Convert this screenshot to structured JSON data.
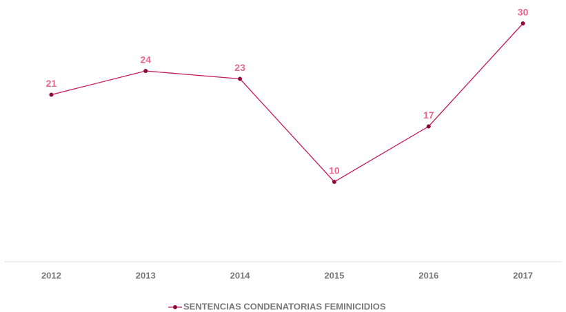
{
  "chart_data": {
    "type": "line",
    "categories": [
      "2012",
      "2013",
      "2014",
      "2015",
      "2016",
      "2017"
    ],
    "series": [
      {
        "name": "SENTENCIAS CONDENATORIAS FEMINICIDIOS",
        "color": "#c2185b",
        "values": [
          21,
          24,
          23,
          10,
          17,
          30
        ]
      }
    ],
    "ylim": [
      0,
      30
    ],
    "legend": "bottom"
  }
}
